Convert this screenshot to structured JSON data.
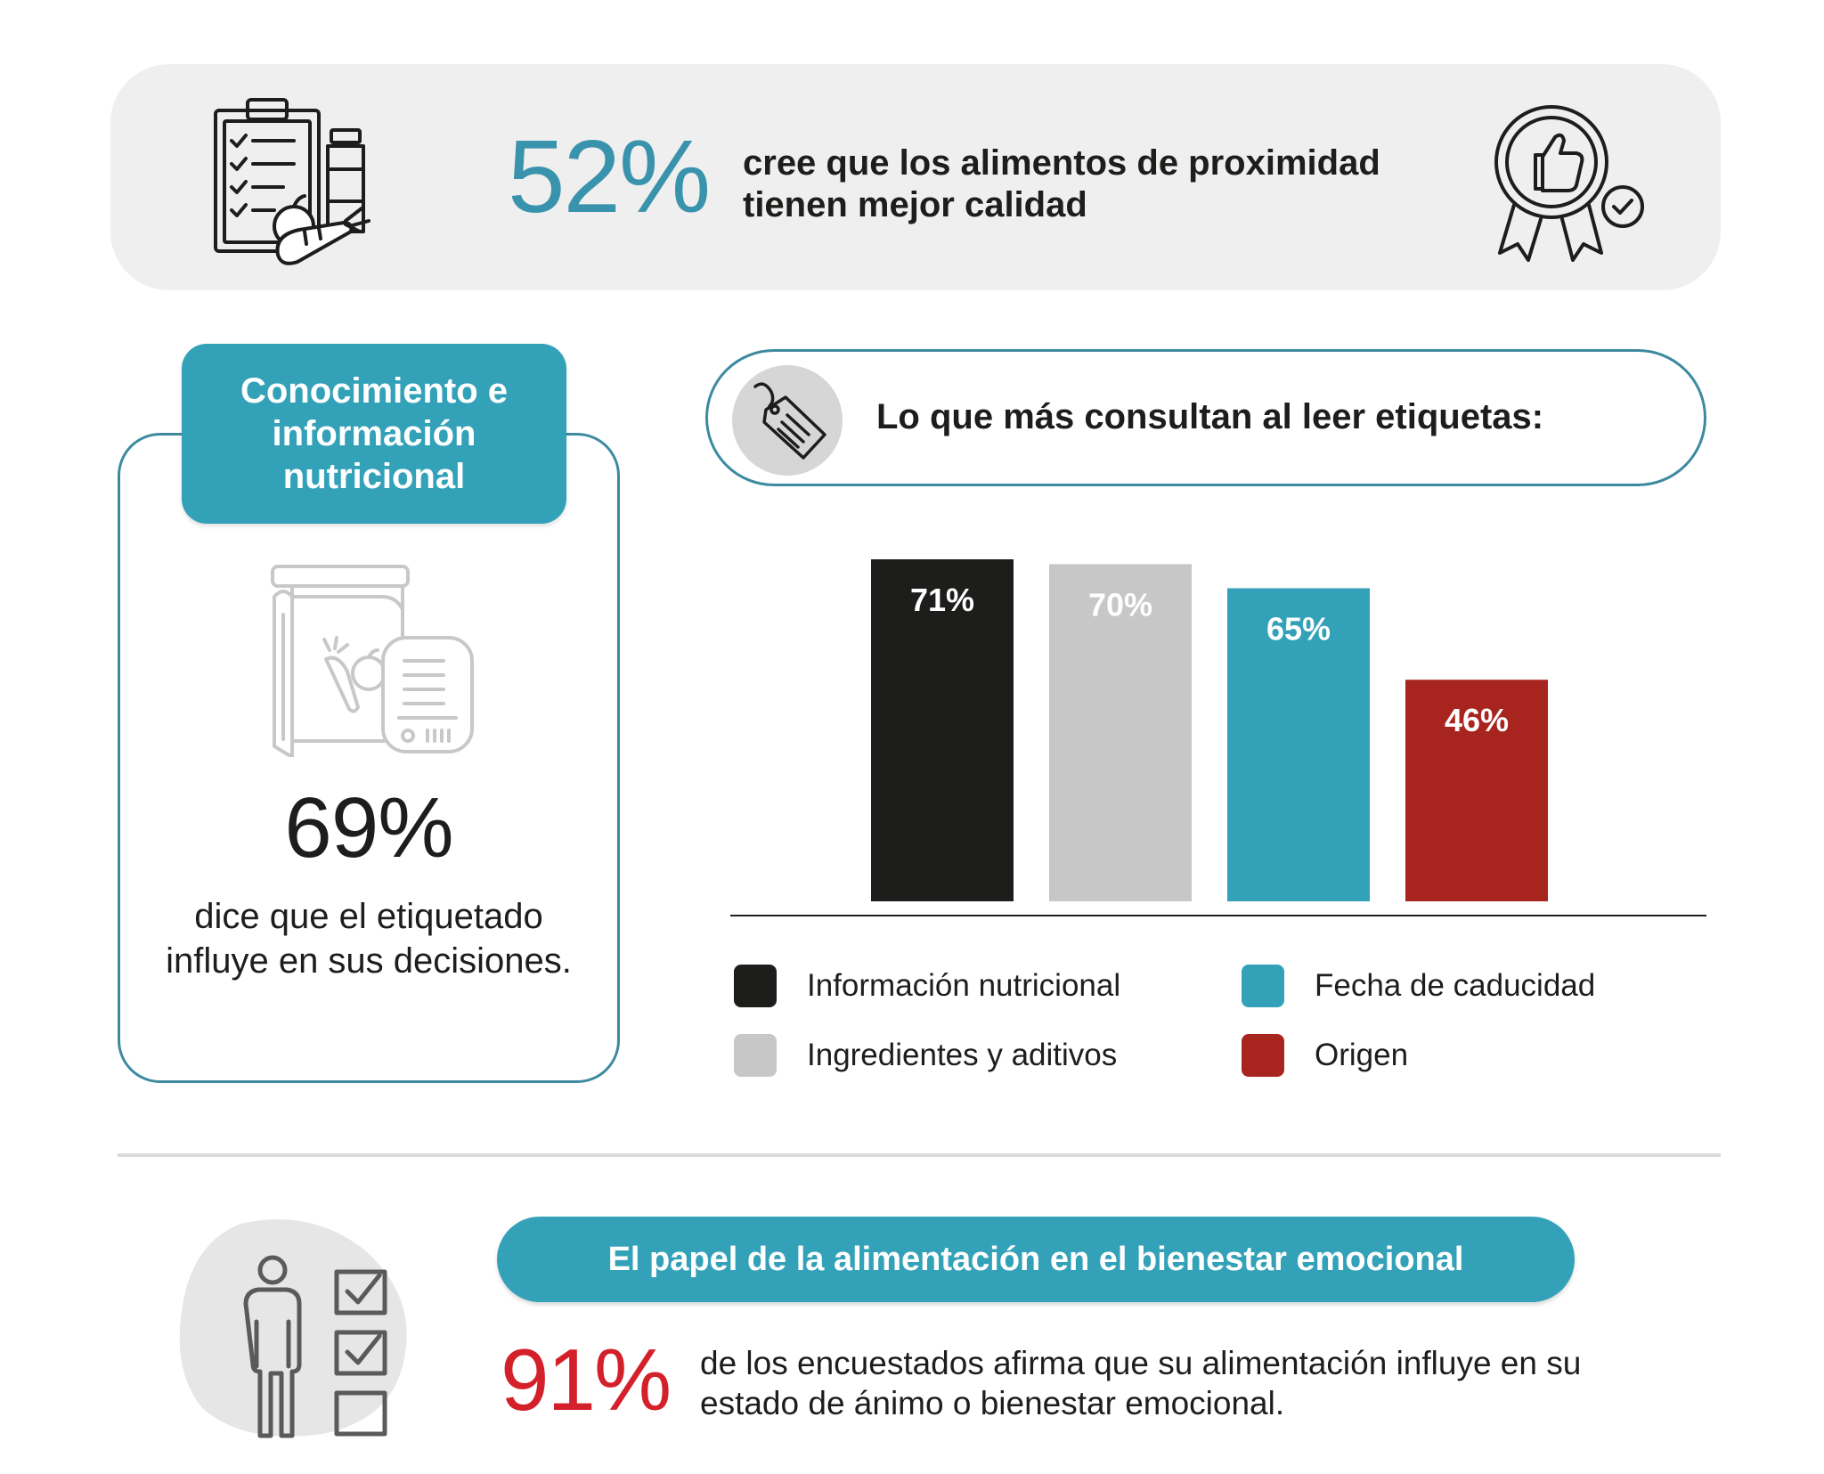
{
  "banner": {
    "percent": "52%",
    "text": "cree que los alimentos de proximidad tienen mejor calidad",
    "icons": [
      "clipboard-checklist-icon",
      "award-ribbon-icon"
    ]
  },
  "knowledge_card": {
    "title": "Conocimiento e información nutricional",
    "percent": "69%",
    "text": "dice que el etiquetado influye en sus decisiones.",
    "icon": "food-package-label-icon"
  },
  "chart_header": {
    "title": "Lo que más consultan al leer etiquetas:",
    "icon": "price-tag-icon"
  },
  "chart_data": {
    "type": "bar",
    "title": "Lo que más consultan al leer etiquetas:",
    "categories": [
      "Información nutricional",
      "Ingredientes y aditivos",
      "Fecha de caducidad",
      "Origen"
    ],
    "values": [
      71,
      70,
      65,
      46
    ],
    "value_labels": [
      "71%",
      "70%",
      "65%",
      "46%"
    ],
    "colors": [
      "#1d1d1b",
      "#c7c7c7",
      "#33a2b8",
      "#a8251f"
    ],
    "ylim": [
      0,
      71
    ],
    "grid": false,
    "legend_position": "bottom",
    "legend": [
      {
        "label": "Información nutricional",
        "color": "#1d1d1b"
      },
      {
        "label": "Fecha de caducidad",
        "color": "#33a2b8"
      },
      {
        "label": "Ingredientes y aditivos",
        "color": "#c7c7c7"
      },
      {
        "label": "Origen",
        "color": "#a8251f"
      }
    ]
  },
  "wellbeing": {
    "title": "El papel de la alimentación en el bienestar emocional",
    "percent": "91%",
    "text": "de los encuestados afirma que su alimentación influye en su estado de ánimo o bienestar emocional.",
    "icon": "person-checklist-icon",
    "percent_color": "#d3202b"
  },
  "colors": {
    "accent": "#33a2b8",
    "accent_text": "#3a93ac",
    "border": "#3d8aa0",
    "banner_bg": "#efefef"
  }
}
